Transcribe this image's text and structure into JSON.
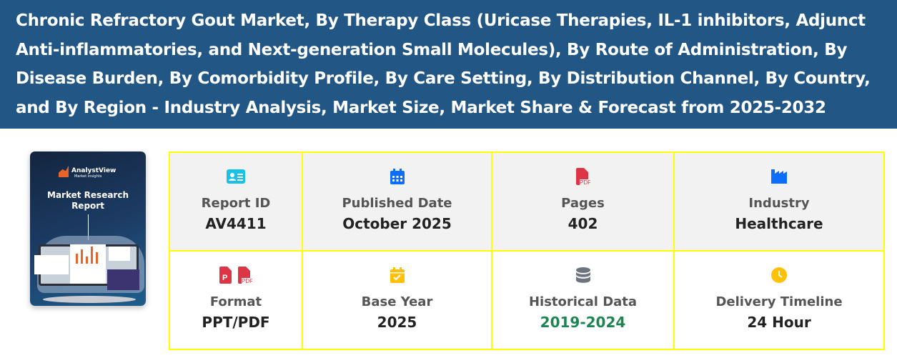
{
  "header": {
    "title": "Chronic Refractory Gout Market, By Therapy Class (Uricase Therapies, IL-1 inhibitors, Adjunct Anti-inflammatories, and Next-generation Small Molecules), By Route of Administration, By Disease Burden, By Comorbidity Profile, By Care Setting, By Distribution Channel, By Country, and By Region - Industry Analysis, Market Size, Market Share & Forecast from 2025-2032"
  },
  "cover": {
    "brand": "AnalystView",
    "tagline": "Market Insights",
    "title": "Market Research Report"
  },
  "details": [
    {
      "icon": "id-card-icon",
      "label": "Report ID",
      "value": "AV4411",
      "color": "#17c1e8"
    },
    {
      "icon": "calendar-icon",
      "label": "Published Date",
      "value": "October 2025",
      "color": "#0d6efd"
    },
    {
      "icon": "file-pdf-icon",
      "label": "Pages",
      "value": "402",
      "color": "#dc3545"
    },
    {
      "icon": "industry-icon",
      "label": "Industry",
      "value": "Healthcare",
      "color": "#0d6efd"
    },
    {
      "icon": "file-ppt-pdf-icon",
      "label": "Format",
      "value": "PPT/PDF",
      "color": "#dc3545"
    },
    {
      "icon": "calendar-check-icon",
      "label": "Base Year",
      "value": "2025",
      "color": "#ffc107"
    },
    {
      "icon": "database-icon",
      "label": "Historical Data",
      "value": "2019-2024",
      "color": "#6c757d",
      "value_color": "#1d8552"
    },
    {
      "icon": "clock-icon",
      "label": "Delivery Timeline",
      "value": "24 Hour",
      "color": "#ffc107"
    }
  ]
}
